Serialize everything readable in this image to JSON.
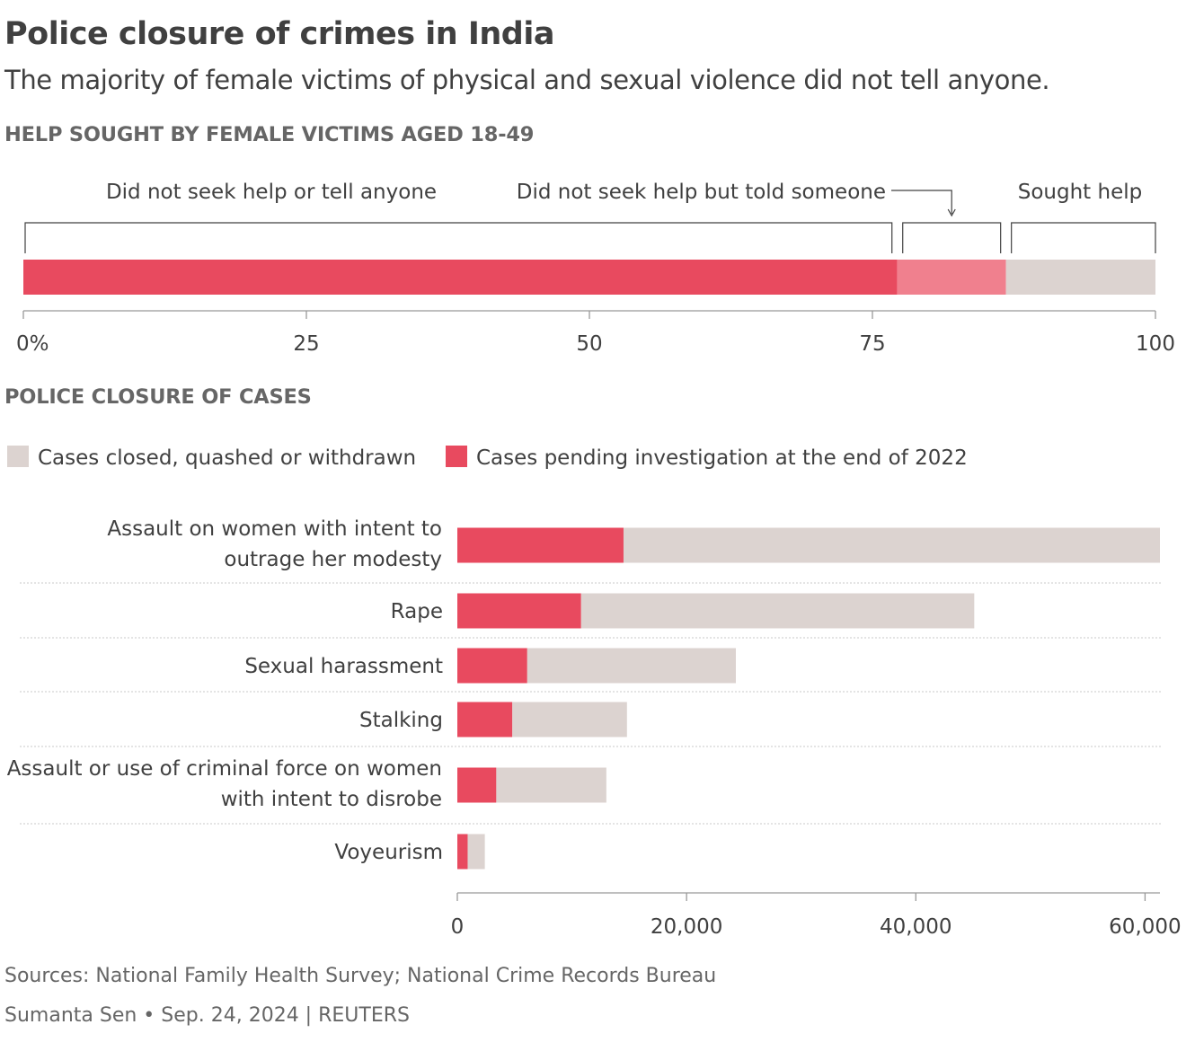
{
  "title": "Police closure of crimes in India",
  "subtitle": "The majority of female victims of physical and sexual violence did not tell anyone.",
  "colors": {
    "red": "#e84a5f",
    "pink": "#f0808e",
    "beige": "#dcd3d0",
    "text": "#404040",
    "muted": "#666666",
    "axis": "#999999"
  },
  "chart_data": [
    {
      "type": "bar",
      "orientation": "horizontal-stacked",
      "title": "HELP SOUGHT BY FEMALE VICTIMS AGED 18-49",
      "segments": [
        {
          "name": "Did not seek help or tell anyone",
          "value": 77.2,
          "color": "#e84a5f"
        },
        {
          "name": "Did not seek help but told someone",
          "value": 9.6,
          "color": "#f0808e"
        },
        {
          "name": "Sought help",
          "value": 13.2,
          "color": "#dcd3d0"
        }
      ],
      "xlim": [
        0,
        100
      ],
      "ticks": [
        0,
        25,
        50,
        75,
        100
      ],
      "tick_labels": [
        "0%",
        "25",
        "50",
        "75",
        "100"
      ],
      "grid": false
    },
    {
      "type": "bar",
      "orientation": "horizontal-stacked",
      "title": "POLICE CLOSURE OF CASES",
      "legend": [
        {
          "name": "Cases closed, quashed or withdrawn",
          "color": "#dcd3d0"
        },
        {
          "name": "Cases pending investigation at the end of 2022",
          "color": "#e84a5f"
        }
      ],
      "categories": [
        [
          "Assault on women with intent to",
          "outrage her modesty"
        ],
        [
          "Rape"
        ],
        [
          "Sexual harassment"
        ],
        [
          "Stalking"
        ],
        [
          "Assault or use of criminal force on women",
          "with intent to disrobe"
        ],
        [
          "Voyeurism"
        ]
      ],
      "series": [
        {
          "name": "Cases pending investigation at the end of 2022",
          "values": [
            14500,
            10800,
            6100,
            4800,
            3400,
            900
          ]
        },
        {
          "name": "Cases closed, quashed or withdrawn",
          "values": [
            46800,
            34300,
            18200,
            10000,
            9600,
            1500
          ]
        }
      ],
      "xlim": [
        0,
        61300
      ],
      "ticks": [
        0,
        20000,
        40000,
        60000
      ],
      "tick_labels": [
        "0",
        "20,000",
        "40,000",
        "60,000"
      ],
      "grid": false
    }
  ],
  "footer": {
    "sources": "Sources: National Family Health Survey; National Crime Records Bureau",
    "credit": "Sumanta Sen • Sep. 24, 2024 | REUTERS"
  }
}
